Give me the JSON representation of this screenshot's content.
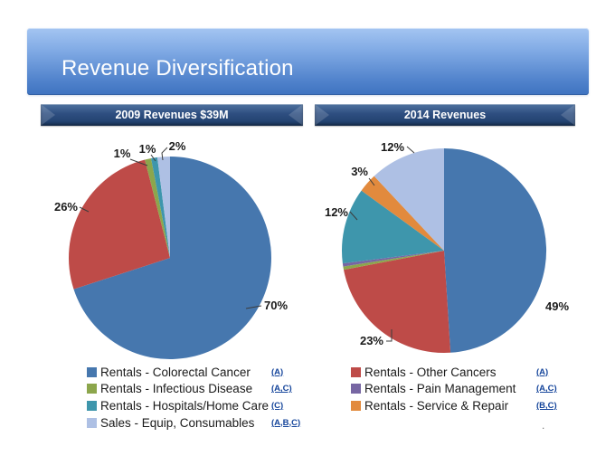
{
  "slide": {
    "title": "Revenue Diversification",
    "left_header": "2009 Revenues $39M",
    "right_header": "2014 Revenues",
    "footer_dot": "."
  },
  "colors": {
    "series": {
      "colorectal": "#4677ae",
      "other_cancers": "#be4b48",
      "infectious": "#8ca64c",
      "pain": "#7766a3",
      "hospitals": "#3e96ac",
      "service": "#e28a3d",
      "sales_equip": "#aec0e4"
    },
    "note_blue": "#15459b"
  },
  "chart_data": [
    {
      "type": "pie",
      "title": "2009 Revenues $39M",
      "legend_position": "bottom",
      "slices": [
        {
          "name": "Rentals - Colorectal Cancer",
          "value": 70,
          "label": "70%",
          "color_key": "colorectal"
        },
        {
          "name": "Rentals - Other Cancers",
          "value": 26,
          "label": "26%",
          "color_key": "other_cancers"
        },
        {
          "name": "Rentals - Infectious Disease",
          "value": 1,
          "label": "1%",
          "color_key": "infectious"
        },
        {
          "name": "Rentals - Pain Management",
          "value": 0,
          "label": "",
          "color_key": "pain"
        },
        {
          "name": "Rentals - Hospitals/Home Care",
          "value": 1,
          "label": "1%",
          "color_key": "hospitals"
        },
        {
          "name": "Rentals - Service & Repair",
          "value": 0,
          "label": "",
          "color_key": "service"
        },
        {
          "name": "Sales - Equip, Consumables",
          "value": 2,
          "label": "2%",
          "color_key": "sales_equip"
        }
      ]
    },
    {
      "type": "pie",
      "title": "2014 Revenues",
      "legend_position": "bottom",
      "slices": [
        {
          "name": "Rentals - Colorectal Cancer",
          "value": 49,
          "label": "49%",
          "color_key": "colorectal"
        },
        {
          "name": "Rentals - Other Cancers",
          "value": 23,
          "label": "23%",
          "color_key": "other_cancers"
        },
        {
          "name": "Rentals - Infectious Disease",
          "value": 0.5,
          "label": "",
          "color_key": "infectious"
        },
        {
          "name": "Rentals - Pain Management",
          "value": 0.5,
          "label": "",
          "color_key": "pain"
        },
        {
          "name": "Rentals - Hospitals/Home Care",
          "value": 12,
          "label": "12%",
          "color_key": "hospitals"
        },
        {
          "name": "Rentals - Service & Repair",
          "value": 3,
          "label": "3%",
          "color_key": "service"
        },
        {
          "name": "Sales - Equip, Consumables",
          "value": 12,
          "label": "12%",
          "color_key": "sales_equip"
        }
      ]
    }
  ],
  "legend": {
    "left": [
      {
        "label": "Rentals - Colorectal Cancer",
        "note": "(A)",
        "color_key": "colorectal"
      },
      {
        "label": "Rentals - Infectious Disease",
        "note": "(A,C)",
        "color_key": "infectious"
      },
      {
        "label": "Rentals - Hospitals/Home Care",
        "note": "(C)",
        "color_key": "hospitals"
      },
      {
        "label": "Sales - Equip, Consumables",
        "note": "(A,B,C)",
        "color_key": "sales_equip"
      }
    ],
    "right": [
      {
        "label": "Rentals - Other Cancers",
        "note": "(A)",
        "color_key": "other_cancers"
      },
      {
        "label": "Rentals - Pain Management",
        "note": "(A,C)",
        "color_key": "pain"
      },
      {
        "label": "Rentals - Service & Repair",
        "note": "(B,C)",
        "color_key": "service"
      }
    ]
  }
}
